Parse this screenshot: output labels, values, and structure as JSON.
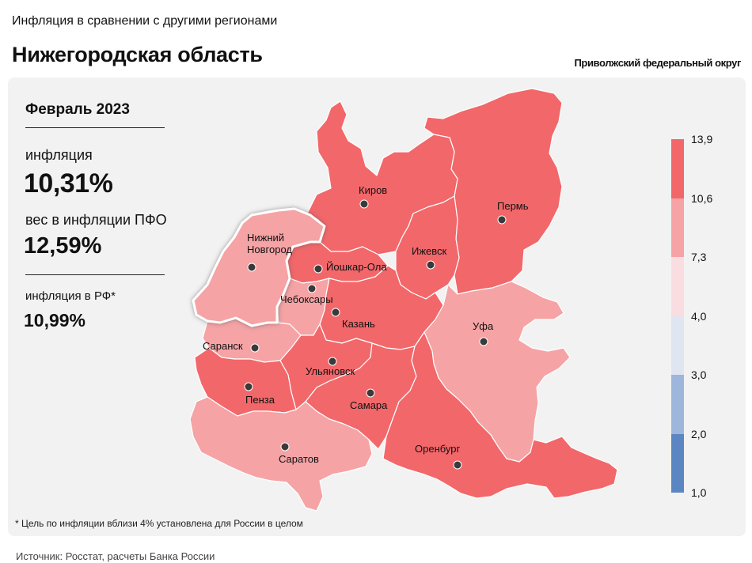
{
  "header": {
    "supertitle": "Инфляция в сравнении с другими регионами",
    "title": "Нижегородская область",
    "district": "Приволжский федеральный округ"
  },
  "info": {
    "period": "Февраль 2023",
    "inflation_label": "инфляция",
    "inflation_value": "10,31%",
    "weight_label": "вес в инфляции ПФО",
    "weight_value": "12,59%",
    "rf_label": "инфляция в РФ*",
    "rf_value": "10,99%"
  },
  "footnote": "* Цель по инфляции вблизи 4% установлена для России в целом",
  "source": "Источник: Росстат, расчеты Банка России",
  "legend": {
    "breaks": [
      "13,9",
      "10,6",
      "7,3",
      "4,0",
      "3,0",
      "2,0",
      "1,0"
    ],
    "colors": [
      "#f2676a",
      "#f5a3a5",
      "#f9dde0",
      "#dfe6f2",
      "#9fb6dc",
      "#5b86c2"
    ]
  },
  "colors": {
    "high": "#f2676a",
    "medium": "#f5a3a5",
    "selected_outline": "#ffffff"
  },
  "regions": [
    {
      "name": "Нижний Новгород",
      "label_lines": [
        "Нижний",
        "Новгород"
      ],
      "category": "medium",
      "selected": true
    },
    {
      "name": "Киров",
      "label_lines": [
        "Киров"
      ],
      "category": "high"
    },
    {
      "name": "Пермь",
      "label_lines": [
        "Пермь"
      ],
      "category": "high"
    },
    {
      "name": "Ижевск",
      "label_lines": [
        "Ижевск"
      ],
      "category": "high"
    },
    {
      "name": "Йошкар-Ола",
      "label_lines": [
        "Йошкар-Ола"
      ],
      "category": "high"
    },
    {
      "name": "Чебоксары",
      "label_lines": [
        "Чебоксары"
      ],
      "category": "medium"
    },
    {
      "name": "Казань",
      "label_lines": [
        "Казань"
      ],
      "category": "high"
    },
    {
      "name": "Уфа",
      "label_lines": [
        "Уфа"
      ],
      "category": "medium"
    },
    {
      "name": "Саранск",
      "label_lines": [
        "Саранск"
      ],
      "category": "medium"
    },
    {
      "name": "Ульяновск",
      "label_lines": [
        "Ульяновск"
      ],
      "category": "high"
    },
    {
      "name": "Пенза",
      "label_lines": [
        "Пенза"
      ],
      "category": "high"
    },
    {
      "name": "Самара",
      "label_lines": [
        "Самара"
      ],
      "category": "high"
    },
    {
      "name": "Оренбург",
      "label_lines": [
        "Оренбург"
      ],
      "category": "high"
    },
    {
      "name": "Саратов",
      "label_lines": [
        "Саратов"
      ],
      "category": "medium"
    }
  ]
}
